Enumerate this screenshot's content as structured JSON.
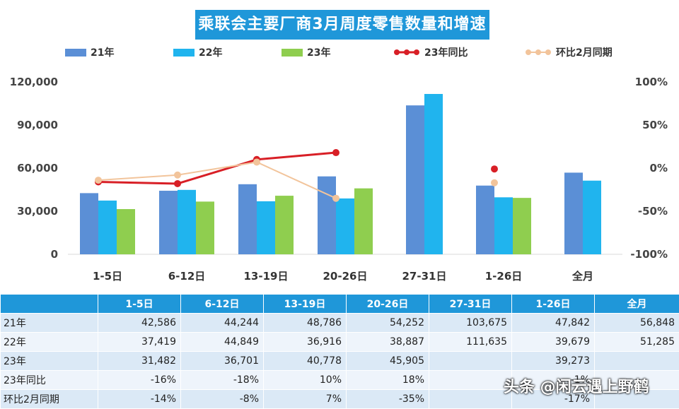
{
  "title": "乘联会主要厂商3月周度零售数量和增速",
  "watermark": "头条 @闲云遇上野鹤",
  "colors": {
    "y21": "#5b8fd6",
    "y22": "#20b4ee",
    "y23": "#8fce4f",
    "yoy": "#d81f26",
    "mom": "#f2c49b",
    "header": "#1f97d9"
  },
  "chart_data": {
    "type": "bar",
    "title": "乘联会主要厂商3月周度零售数量和增速",
    "categories": [
      "1-5日",
      "6-12日",
      "13-19日",
      "20-26日",
      "27-31日",
      "1-26日",
      "全月"
    ],
    "series": [
      {
        "name": "21年",
        "values": [
          42586,
          44244,
          48786,
          54252,
          103675,
          47842,
          56848
        ]
      },
      {
        "name": "22年",
        "values": [
          37419,
          44849,
          36916,
          38887,
          111635,
          39679,
          51285
        ]
      },
      {
        "name": "23年",
        "values": [
          31482,
          36701,
          40778,
          45905,
          null,
          39273,
          null
        ]
      }
    ],
    "line_series": [
      {
        "name": "23年同比",
        "values": [
          -16,
          -18,
          10,
          18,
          null,
          -1,
          null
        ],
        "connect_first": 4
      },
      {
        "name": "环比2月同期",
        "values": [
          -14,
          -8,
          7,
          -35,
          null,
          -17,
          null
        ],
        "connect_first": 4
      }
    ],
    "ylim": [
      0,
      120000
    ],
    "yticks": [
      "0",
      "30,000",
      "60,000",
      "90,000",
      "120,000"
    ],
    "y2lim": [
      -100,
      100
    ],
    "y2ticks": [
      "-100%",
      "-50%",
      "0%",
      "50%",
      "100%"
    ],
    "legend": "top",
    "grid": false
  },
  "table": {
    "headers": [
      "",
      "1-5日",
      "6-12日",
      "13-19日",
      "20-26日",
      "27-31日",
      "1-26日",
      "全月"
    ],
    "rows": [
      {
        "label": "21年",
        "cells": [
          "42,586",
          "44,244",
          "48,786",
          "54,252",
          "103,675",
          "47,842",
          "56,848"
        ]
      },
      {
        "label": "22年",
        "cells": [
          "37,419",
          "44,849",
          "36,916",
          "38,887",
          "111,635",
          "39,679",
          "51,285"
        ]
      },
      {
        "label": "23年",
        "cells": [
          "31,482",
          "36,701",
          "40,778",
          "45,905",
          "",
          "39,273",
          ""
        ]
      },
      {
        "label": "23年同比",
        "cells": [
          "-16%",
          "-18%",
          "10%",
          "18%",
          "",
          "-1%",
          ""
        ]
      },
      {
        "label": "环比2月同期",
        "cells": [
          "-14%",
          "-8%",
          "7%",
          "-35%",
          "",
          "-17%",
          ""
        ]
      }
    ]
  }
}
